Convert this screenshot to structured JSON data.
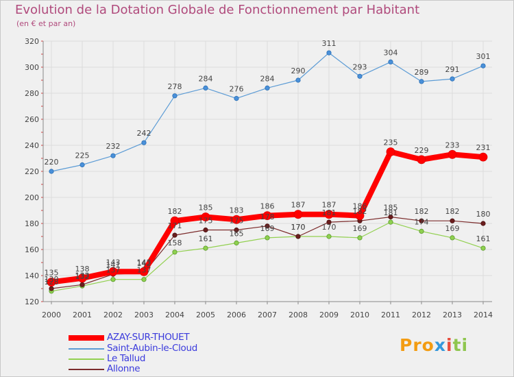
{
  "header": {
    "title": "Evolution de la Dotation Globale de Fonctionnement par Habitant",
    "subtitle": "(en € et par an)"
  },
  "chart_data": {
    "type": "line",
    "categories": [
      "2000",
      "2001",
      "2002",
      "2003",
      "2004",
      "2005",
      "2006",
      "2007",
      "2008",
      "2009",
      "2010",
      "2011",
      "2012",
      "2013",
      "2014"
    ],
    "ylim": [
      120,
      320
    ],
    "yticks": [
      120,
      140,
      160,
      180,
      200,
      220,
      240,
      260,
      280,
      300,
      320
    ],
    "grid": true,
    "legend_position": "bottom-left",
    "series": [
      {
        "name": "AZAY-SUR-THOUET",
        "color": "#ff0000",
        "values": [
          135,
          138,
          143,
          143,
          182,
          185,
          183,
          186,
          187,
          187,
          186,
          235,
          229,
          233,
          231
        ]
      },
      {
        "name": "Saint-Aubin-le-Cloud",
        "color": "#5b9bd5",
        "values": [
          220,
          225,
          232,
          242,
          278,
          284,
          276,
          284,
          290,
          311,
          293,
          304,
          289,
          291,
          301
        ]
      },
      {
        "name": "Le Tallud",
        "color": "#92d050",
        "values": [
          128,
          132,
          137,
          137,
          158,
          161,
          165,
          169,
          170,
          170,
          169,
          181,
          174,
          169,
          161
        ]
      },
      {
        "name": "Allonne",
        "color": "#7b2b2b",
        "values": [
          130,
          133,
          141,
          142,
          171,
          175,
          175,
          178,
          170,
          181,
          182,
          185,
          182,
          182,
          180
        ]
      }
    ],
    "data_labels": {
      "AZAY-SUR-THOUET": [
        "135",
        "138",
        "143",
        "143",
        "182",
        "185",
        "183",
        "186",
        "187",
        "187",
        "186",
        "235",
        "229",
        "233",
        "231"
      ],
      "Saint-Aubin-le-Cloud": [
        "220",
        "225",
        "232",
        "242",
        "278",
        "284",
        "276",
        "284",
        "290",
        "311",
        "293",
        "304",
        "289",
        "291",
        "301"
      ],
      "Le Tallud": [
        "128",
        "132",
        "137",
        "137",
        "158",
        "161",
        "165",
        "169",
        "170",
        "170",
        "169",
        "181",
        "174",
        "169",
        "161"
      ],
      "Allonne": [
        "130",
        "133",
        "141",
        "142",
        "171",
        "175",
        "175",
        "178",
        "170",
        "181",
        "182",
        "185",
        "182",
        "182",
        "180"
      ]
    }
  },
  "legend": [
    {
      "label": "AZAY-SUR-THOUET",
      "color": "#ff0000"
    },
    {
      "label": "Saint-Aubin-le-Cloud",
      "color": "#5b9bd5"
    },
    {
      "label": "Le Tallud",
      "color": "#92d050"
    },
    {
      "label": "Allonne",
      "color": "#7b2b2b"
    }
  ],
  "logo": {
    "text": "Proxiti",
    "colors": [
      "#f39c12",
      "#f39c12",
      "#f39c12",
      "#3498db",
      "#e74c3c",
      "#8fc64f",
      "#8fc64f"
    ]
  }
}
